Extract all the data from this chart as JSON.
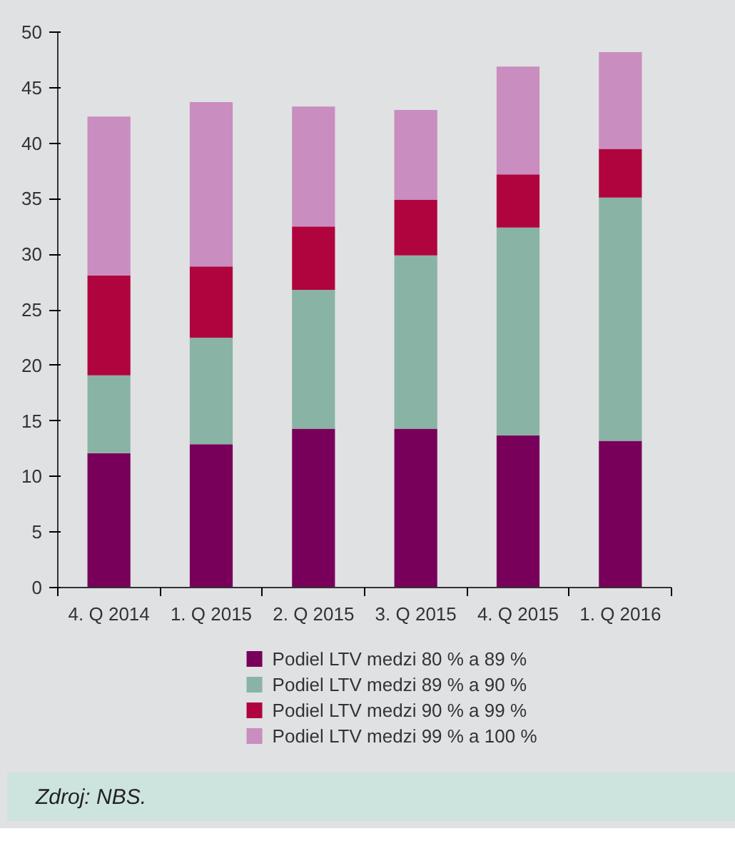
{
  "chart_data": {
    "type": "bar",
    "stacked": true,
    "categories": [
      "4. Q 2014",
      "1. Q 2015",
      "2. Q 2015",
      "3. Q 2015",
      "4. Q 2015",
      "1. Q 2016"
    ],
    "series": [
      {
        "name": "Podiel LTV medzi 80 % a 89 %",
        "color": "#78005a",
        "values": [
          12.1,
          12.9,
          14.3,
          14.3,
          13.7,
          13.2
        ]
      },
      {
        "name": "Podiel LTV medzi 89 % a 90 %",
        "color": "#89b3a5",
        "values": [
          7.0,
          9.6,
          12.5,
          15.6,
          18.7,
          21.9
        ]
      },
      {
        "name": "Podiel LTV medzi 90 % a 99 %",
        "color": "#b0043f",
        "values": [
          9.0,
          6.4,
          5.7,
          5.0,
          4.8,
          4.4
        ]
      },
      {
        "name": "Podiel LTV medzi 99 % a 100 %",
        "color": "#c98dbf",
        "values": [
          14.3,
          14.8,
          10.8,
          8.1,
          9.7,
          8.7
        ]
      }
    ],
    "ylim": [
      0,
      50
    ],
    "yticks": [
      0,
      5,
      10,
      15,
      20,
      25,
      30,
      35,
      40,
      45,
      50
    ],
    "legend": "bottom",
    "annotations": [
      "Zdroj: NBS."
    ]
  }
}
